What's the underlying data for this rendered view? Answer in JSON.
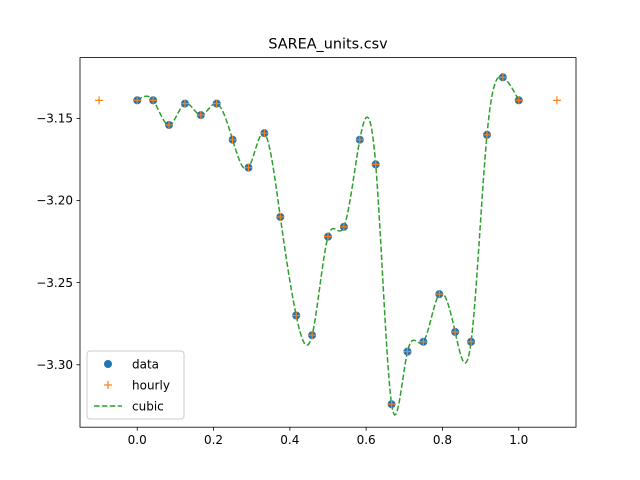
{
  "chart_data": {
    "type": "line",
    "title": "SAREA_units.csv",
    "xlabel": "",
    "ylabel": "",
    "xlim": [
      -0.15,
      1.15
    ],
    "ylim": [
      -3.338,
      -3.113
    ],
    "xticks": [
      0.0,
      0.2,
      0.4,
      0.6,
      0.8,
      1.0
    ],
    "xtick_labels": [
      "0.0",
      "0.2",
      "0.4",
      "0.6",
      "0.8",
      "1.0"
    ],
    "yticks": [
      -3.15,
      -3.2,
      -3.25,
      -3.3
    ],
    "ytick_labels": [
      "−3.15",
      "−3.20",
      "−3.25",
      "−3.30"
    ],
    "grid": false,
    "legend_position": "lower-left",
    "series": [
      {
        "name": "data",
        "style": "markers-circle",
        "color": "#1f77b4",
        "x": [
          0.0,
          0.0417,
          0.0833,
          0.125,
          0.1667,
          0.2083,
          0.25,
          0.2917,
          0.3333,
          0.375,
          0.4167,
          0.4583,
          0.5,
          0.5417,
          0.5833,
          0.625,
          0.6667,
          0.7083,
          0.75,
          0.7917,
          0.8333,
          0.875,
          0.9167,
          0.9583,
          1.0
        ],
        "y": [
          -3.139,
          -3.139,
          -3.154,
          -3.141,
          -3.148,
          -3.141,
          -3.163,
          -3.18,
          -3.159,
          -3.21,
          -3.27,
          -3.282,
          -3.222,
          -3.216,
          -3.163,
          -3.178,
          -3.324,
          -3.292,
          -3.286,
          -3.257,
          -3.28,
          -3.286,
          -3.16,
          -3.125,
          -3.139
        ]
      },
      {
        "name": "hourly",
        "style": "markers-plus",
        "color": "#ff7f0e",
        "x": [
          -0.1,
          0.0,
          0.0417,
          0.0833,
          0.125,
          0.1667,
          0.2083,
          0.25,
          0.2917,
          0.3333,
          0.375,
          0.4167,
          0.4583,
          0.5,
          0.5417,
          0.5833,
          0.625,
          0.6667,
          0.7083,
          0.75,
          0.7917,
          0.8333,
          0.875,
          0.9167,
          0.9583,
          1.0,
          1.1
        ],
        "y": [
          -3.139,
          -3.139,
          -3.139,
          -3.154,
          -3.141,
          -3.148,
          -3.141,
          -3.163,
          -3.18,
          -3.159,
          -3.21,
          -3.27,
          -3.282,
          -3.222,
          -3.216,
          -3.163,
          -3.178,
          -3.324,
          -3.292,
          -3.286,
          -3.257,
          -3.28,
          -3.286,
          -3.16,
          -3.125,
          -3.139,
          -3.139
        ]
      },
      {
        "name": "cubic",
        "style": "dashed-line",
        "color": "#2ca02c",
        "x": [
          0.0,
          0.0417,
          0.0833,
          0.125,
          0.1667,
          0.2083,
          0.25,
          0.2917,
          0.3333,
          0.375,
          0.4167,
          0.4583,
          0.5,
          0.5417,
          0.5833,
          0.625,
          0.6667,
          0.7083,
          0.75,
          0.7917,
          0.8333,
          0.875,
          0.9167,
          0.9583,
          1.0
        ],
        "y": [
          -3.139,
          -3.139,
          -3.154,
          -3.141,
          -3.148,
          -3.141,
          -3.163,
          -3.18,
          -3.159,
          -3.21,
          -3.27,
          -3.282,
          -3.222,
          -3.216,
          -3.163,
          -3.178,
          -3.324,
          -3.292,
          -3.286,
          -3.257,
          -3.28,
          -3.286,
          -3.16,
          -3.125,
          -3.139
        ]
      }
    ],
    "colors": {
      "data": "#1f77b4",
      "hourly": "#ff7f0e",
      "cubic": "#2ca02c",
      "axes": "#000000",
      "background": "#ffffff"
    }
  }
}
